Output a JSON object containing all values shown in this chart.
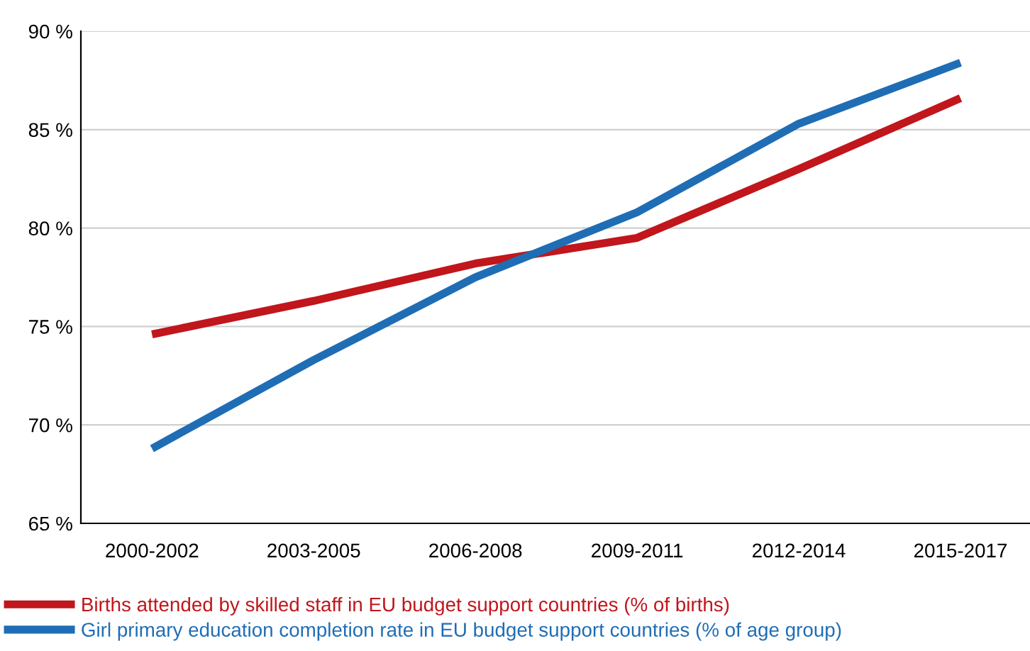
{
  "chart_data": {
    "type": "line",
    "categories": [
      "2000-2002",
      "2003-2005",
      "2006-2008",
      "2009-2011",
      "2012-2014",
      "2015-2017"
    ],
    "series": [
      {
        "name": "Births attended by skilled staff in EU budget support countries (% of births)",
        "color": "#c0161c",
        "values": [
          74.6,
          76.3,
          78.2,
          79.5,
          83.0,
          86.6
        ]
      },
      {
        "name": "Girl primary education completion rate in EU budget support countries (% of age group)",
        "color": "#1f6db5",
        "values": [
          68.8,
          73.3,
          77.5,
          80.8,
          85.3,
          88.4
        ]
      }
    ],
    "ylim": [
      65,
      90
    ],
    "yticks": [
      {
        "value": 65,
        "label": "65 %"
      },
      {
        "value": 70,
        "label": "70 %"
      },
      {
        "value": 75,
        "label": "75 %"
      },
      {
        "value": 80,
        "label": "80 %"
      },
      {
        "value": 85,
        "label": "85 %"
      },
      {
        "value": 90,
        "label": "90 %"
      }
    ],
    "grid": "y",
    "legend": "bottom",
    "marker": "none",
    "line_style": "solid"
  }
}
